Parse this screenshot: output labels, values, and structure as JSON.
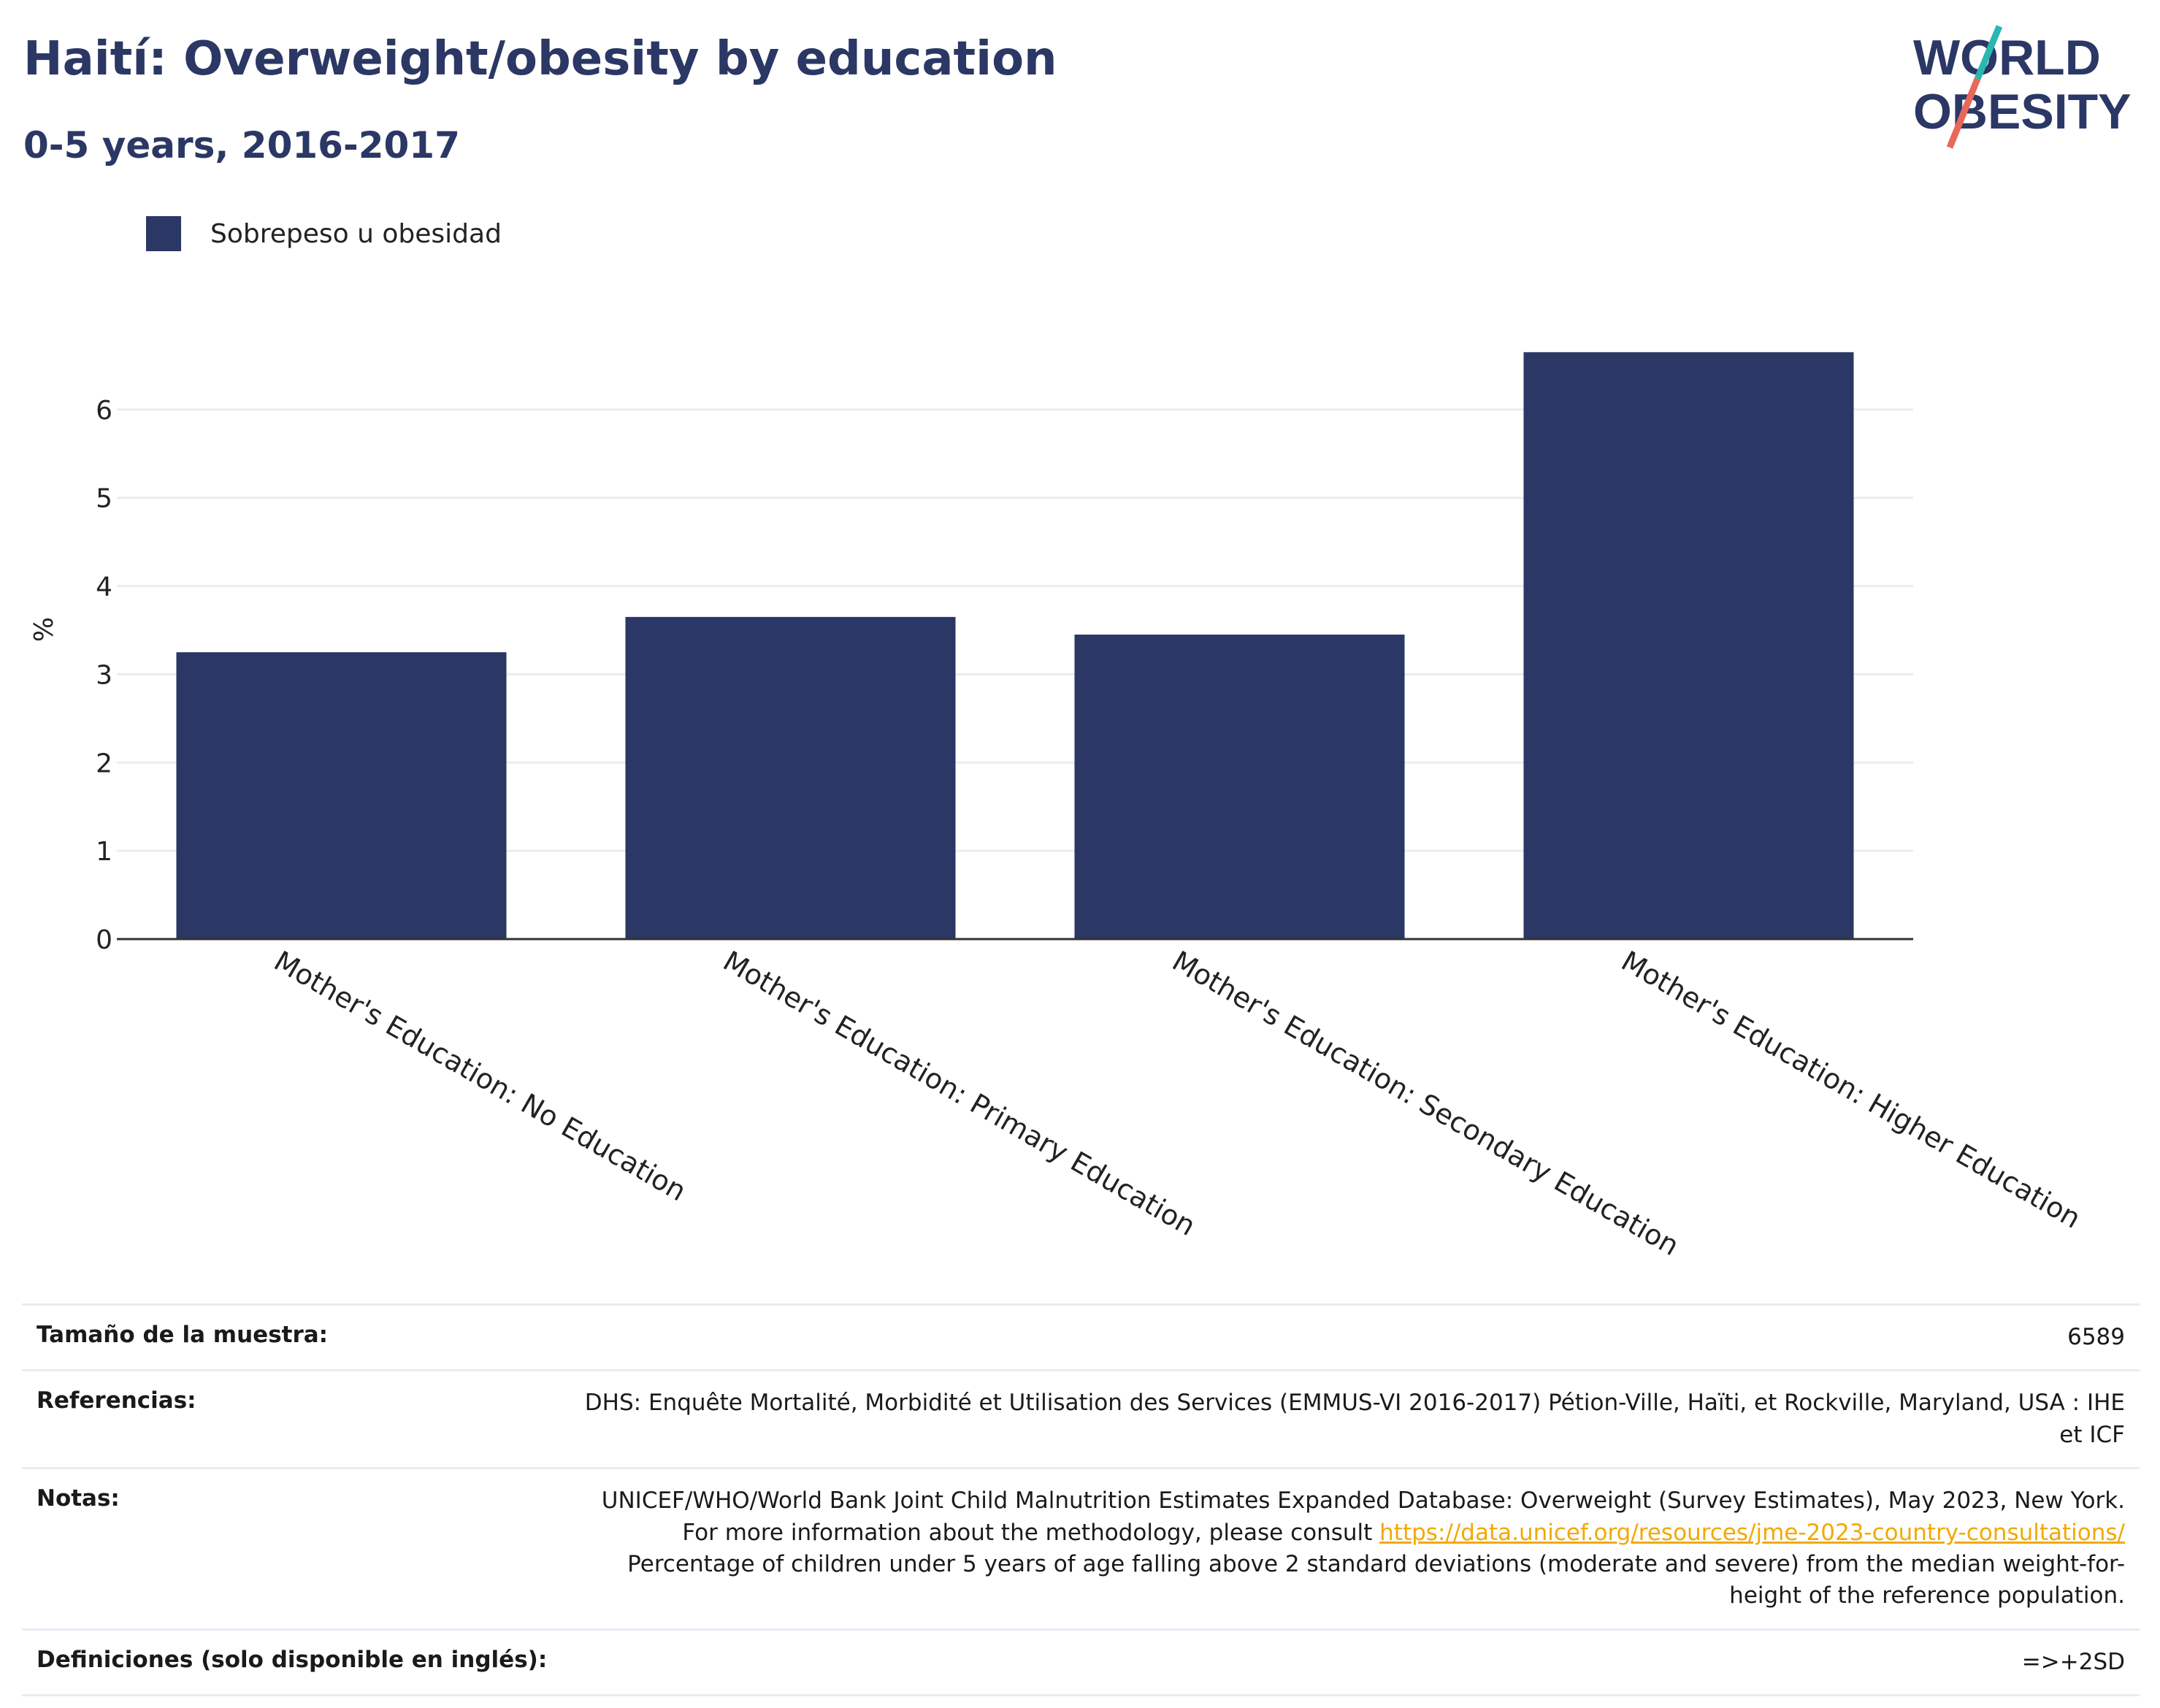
{
  "header": {
    "title": "Haití: Overweight/obesity by education",
    "subtitle": "0-5 years, 2016-2017"
  },
  "logo": {
    "line1": "WORLD",
    "line2": "OBESITY"
  },
  "colors": {
    "bar": "#2b3764",
    "title": "#2b3764",
    "link": "#f2a900",
    "logo_teal": "#2ab7b0",
    "logo_red": "#e8685a"
  },
  "chart_data": {
    "type": "bar",
    "categories": [
      "Mother's Education: No Education",
      "Mother's Education: Primary Education",
      "Mother's Education: Secondary Education",
      "Mother's Education: Higher Education"
    ],
    "series": [
      {
        "name": "Sobrepeso u obesidad",
        "values": [
          3.25,
          3.65,
          3.45,
          6.65
        ]
      }
    ],
    "ylabel": "%",
    "ylim": [
      0,
      7.0
    ],
    "yticks": [
      0,
      1,
      2,
      3,
      4,
      5,
      6
    ],
    "grid": true,
    "legend": "top-left"
  },
  "info": [
    {
      "key": "Tamaño de la muestra:",
      "value": "6589"
    },
    {
      "key": "Referencias:",
      "value": "DHS: Enquête Mortalité, Morbidité et Utilisation des Services (EMMUS-VI 2016-2017) Pétion-Ville, Haïti, et Rockville, Maryland, USA : IHE et ICF"
    },
    {
      "key": "Notas:",
      "value_before": "UNICEF/WHO/World Bank Joint Child Malnutrition Estimates Expanded Database: Overweight (Survey Estimates), May 2023, New York. For more information about the methodology, please consult ",
      "link": "https://data.unicef.org/resources/jme-2023-country-consultations/",
      "value_after": " Percentage of children under 5 years of age falling above 2 standard deviations (moderate and severe) from the median weight-for-height of the reference population."
    },
    {
      "key": "Definiciones (solo disponible en inglés):",
      "value": "=>+2SD"
    }
  ]
}
